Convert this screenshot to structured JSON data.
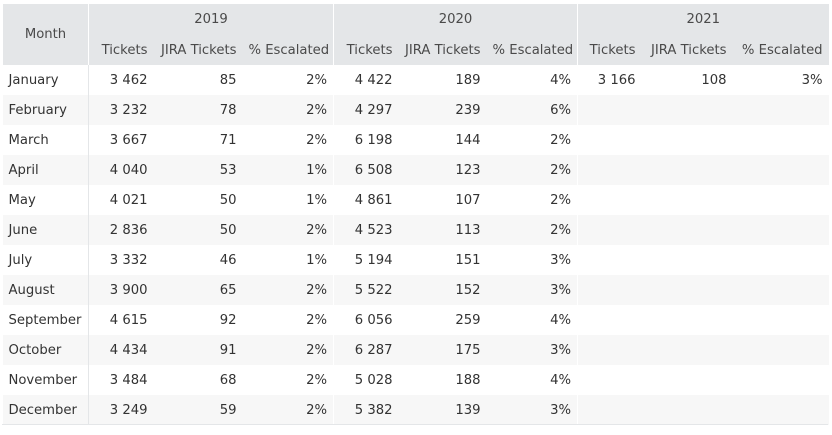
{
  "table": {
    "month_header": "Month",
    "years": [
      "2019",
      "2020",
      "2021"
    ],
    "subheaders": [
      "Tickets",
      "JIRA Tickets",
      "% Escalated"
    ],
    "rows": [
      {
        "month": "January",
        "y2019": [
          "3 462",
          "85",
          "2%"
        ],
        "y2020": [
          "4 422",
          "189",
          "4%"
        ],
        "y2021": [
          "3 166",
          "108",
          "3%"
        ]
      },
      {
        "month": "February",
        "y2019": [
          "3 232",
          "78",
          "2%"
        ],
        "y2020": [
          "4 297",
          "239",
          "6%"
        ],
        "y2021": [
          "",
          "",
          ""
        ]
      },
      {
        "month": "March",
        "y2019": [
          "3 667",
          "71",
          "2%"
        ],
        "y2020": [
          "6 198",
          "144",
          "2%"
        ],
        "y2021": [
          "",
          "",
          ""
        ]
      },
      {
        "month": "April",
        "y2019": [
          "4 040",
          "53",
          "1%"
        ],
        "y2020": [
          "6 508",
          "123",
          "2%"
        ],
        "y2021": [
          "",
          "",
          ""
        ]
      },
      {
        "month": "May",
        "y2019": [
          "4 021",
          "50",
          "1%"
        ],
        "y2020": [
          "4 861",
          "107",
          "2%"
        ],
        "y2021": [
          "",
          "",
          ""
        ]
      },
      {
        "month": "June",
        "y2019": [
          "2 836",
          "50",
          "2%"
        ],
        "y2020": [
          "4 523",
          "113",
          "2%"
        ],
        "y2021": [
          "",
          "",
          ""
        ]
      },
      {
        "month": "July",
        "y2019": [
          "3 332",
          "46",
          "1%"
        ],
        "y2020": [
          "5 194",
          "151",
          "3%"
        ],
        "y2021": [
          "",
          "",
          ""
        ]
      },
      {
        "month": "August",
        "y2019": [
          "3 900",
          "65",
          "2%"
        ],
        "y2020": [
          "5 522",
          "152",
          "3%"
        ],
        "y2021": [
          "",
          "",
          ""
        ]
      },
      {
        "month": "September",
        "y2019": [
          "4 615",
          "92",
          "2%"
        ],
        "y2020": [
          "6 056",
          "259",
          "4%"
        ],
        "y2021": [
          "",
          "",
          ""
        ]
      },
      {
        "month": "October",
        "y2019": [
          "4 434",
          "91",
          "2%"
        ],
        "y2020": [
          "6 287",
          "175",
          "3%"
        ],
        "y2021": [
          "",
          "",
          ""
        ]
      },
      {
        "month": "November",
        "y2019": [
          "3 484",
          "68",
          "2%"
        ],
        "y2020": [
          "5 028",
          "188",
          "4%"
        ],
        "y2021": [
          "",
          "",
          ""
        ]
      },
      {
        "month": "December",
        "y2019": [
          "3 249",
          "59",
          "2%"
        ],
        "y2020": [
          "5 382",
          "139",
          "3%"
        ],
        "y2021": [
          "",
          "",
          ""
        ]
      }
    ]
  },
  "chart_data": {
    "type": "table",
    "title": "",
    "row_header": "Month",
    "column_groups": [
      "2019",
      "2020",
      "2021"
    ],
    "columns": [
      "Tickets",
      "JIRA Tickets",
      "% Escalated"
    ],
    "categories": [
      "January",
      "February",
      "March",
      "April",
      "May",
      "June",
      "July",
      "August",
      "September",
      "October",
      "November",
      "December"
    ],
    "series": [
      {
        "name": "2019 Tickets",
        "values": [
          3462,
          3232,
          3667,
          4040,
          4021,
          2836,
          3332,
          3900,
          4615,
          4434,
          3484,
          3249
        ]
      },
      {
        "name": "2019 JIRA Tickets",
        "values": [
          85,
          78,
          71,
          53,
          50,
          50,
          46,
          65,
          92,
          91,
          68,
          59
        ]
      },
      {
        "name": "2019 % Escalated",
        "values": [
          2,
          2,
          2,
          1,
          1,
          2,
          1,
          2,
          2,
          2,
          2,
          2
        ]
      },
      {
        "name": "2020 Tickets",
        "values": [
          4422,
          4297,
          6198,
          6508,
          4861,
          4523,
          5194,
          5522,
          6056,
          6287,
          5028,
          5382
        ]
      },
      {
        "name": "2020 JIRA Tickets",
        "values": [
          189,
          239,
          144,
          123,
          107,
          113,
          151,
          152,
          259,
          175,
          188,
          139
        ]
      },
      {
        "name": "2020 % Escalated",
        "values": [
          4,
          6,
          2,
          2,
          2,
          2,
          3,
          3,
          4,
          3,
          4,
          3
        ]
      },
      {
        "name": "2021 Tickets",
        "values": [
          3166,
          null,
          null,
          null,
          null,
          null,
          null,
          null,
          null,
          null,
          null,
          null
        ]
      },
      {
        "name": "2021 JIRA Tickets",
        "values": [
          108,
          null,
          null,
          null,
          null,
          null,
          null,
          null,
          null,
          null,
          null,
          null
        ]
      },
      {
        "name": "2021 % Escalated",
        "values": [
          3,
          null,
          null,
          null,
          null,
          null,
          null,
          null,
          null,
          null,
          null,
          null
        ]
      }
    ]
  }
}
